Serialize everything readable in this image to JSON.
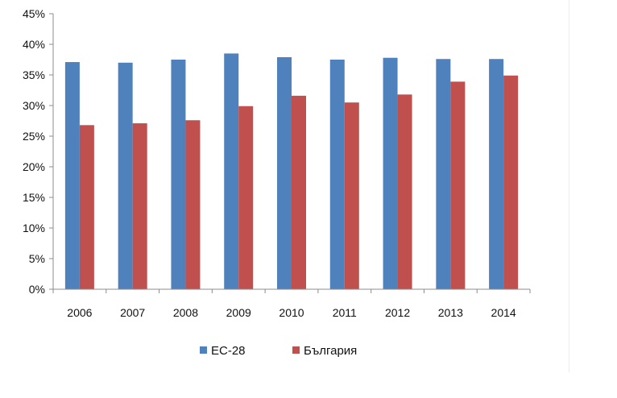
{
  "chart_data": {
    "type": "bar",
    "categories": [
      "2006",
      "2007",
      "2008",
      "2009",
      "2010",
      "2011",
      "2012",
      "2013",
      "2014"
    ],
    "series": [
      {
        "name": "ЕС-28",
        "color": "#4f81bd",
        "values": [
          37.1,
          37.0,
          37.5,
          38.5,
          37.9,
          37.5,
          37.8,
          37.6,
          37.6
        ]
      },
      {
        "name": "България",
        "color": "#c0504d",
        "values": [
          26.8,
          27.1,
          27.6,
          29.9,
          31.6,
          30.5,
          31.8,
          33.9,
          34.9
        ]
      }
    ],
    "yticks": [
      "0%",
      "5%",
      "10%",
      "15%",
      "20%",
      "25%",
      "30%",
      "35%",
      "40%",
      "45%"
    ],
    "ylim": [
      0,
      45
    ],
    "legend_position": "bottom",
    "grid": false
  }
}
